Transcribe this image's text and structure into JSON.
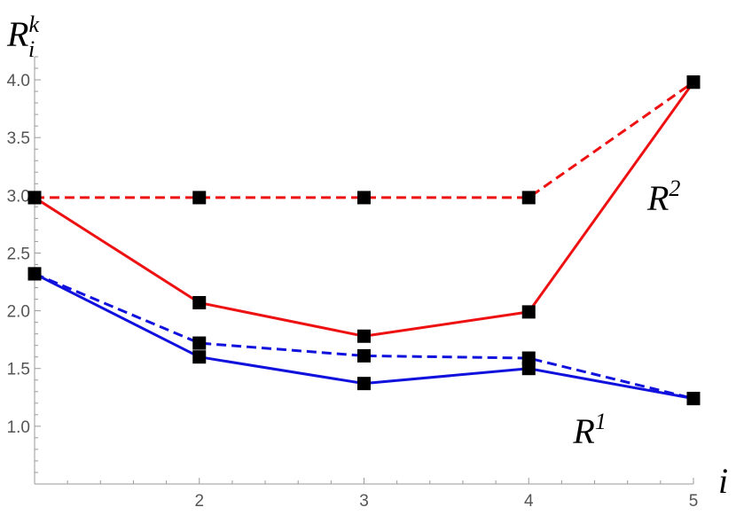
{
  "chart_data": {
    "type": "line",
    "title": "",
    "xlabel": "i",
    "ylabel": {
      "base": "R",
      "sub": "i",
      "sup": "k"
    },
    "xlim": [
      1,
      5
    ],
    "ylim": [
      0.5,
      4.2
    ],
    "x_ticks": [
      2,
      3,
      4,
      5
    ],
    "x_tick_labels": [
      "2",
      "3",
      "4",
      "5"
    ],
    "y_ticks": [
      1.0,
      1.5,
      2.0,
      2.5,
      3.0,
      3.5,
      4.0
    ],
    "y_tick_labels": [
      "1.0",
      "1.5",
      "2.0",
      "2.5",
      "3.0",
      "3.5",
      "4.0"
    ],
    "grid": false,
    "x": [
      1,
      2,
      3,
      4,
      5
    ],
    "series": [
      {
        "color": "#ee1111",
        "dash": "dashed",
        "values": [
          2.98,
          2.98,
          2.98,
          2.98,
          3.98
        ]
      },
      {
        "color": "#ee1111",
        "dash": "solid",
        "values": [
          2.98,
          2.07,
          1.78,
          1.99,
          3.98
        ]
      },
      {
        "color": "#1111dd",
        "dash": "dashed",
        "values": [
          2.32,
          1.72,
          1.61,
          1.59,
          1.24
        ]
      },
      {
        "color": "#1111dd",
        "dash": "solid",
        "values": [
          2.32,
          1.6,
          1.37,
          1.5,
          1.24
        ]
      }
    ],
    "annotations": [
      {
        "base": "R",
        "sup": "2",
        "x": 4.72,
        "y": 2.98
      },
      {
        "base": "R",
        "sup": "1",
        "x": 4.27,
        "y": 0.96
      }
    ]
  }
}
